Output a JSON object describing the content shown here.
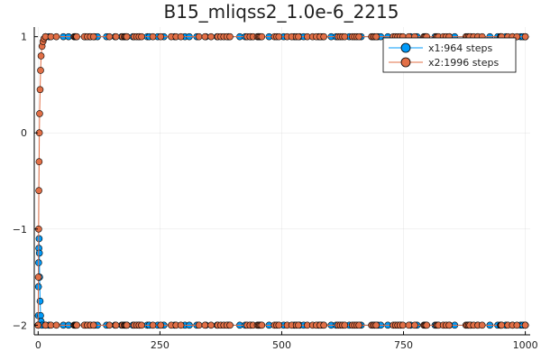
{
  "chart_data": {
    "type": "scatter",
    "title": "B15_mliqss2_1.0e-6_2215",
    "xlabel": "",
    "ylabel": "",
    "xlim": [
      -8,
      1010
    ],
    "ylim": [
      -2.1,
      1.1
    ],
    "x_ticks": [
      0,
      250,
      500,
      750,
      1000
    ],
    "x_tick_labels": [
      "0",
      "250",
      "500",
      "750",
      "1000"
    ],
    "y_ticks": [
      1,
      0,
      -1,
      -2
    ],
    "y_tick_labels": [
      "1",
      "0",
      "−1",
      "−2"
    ],
    "grid": true,
    "legend_position": "top-right",
    "series": [
      {
        "name": "x1:964 steps",
        "color": "#009af9",
        "marker": "circle",
        "description_values": {
          "transient_t": [
            0,
            0.3,
            0.6,
            1,
            1.5,
            2,
            2.5,
            3,
            4,
            5,
            6,
            8
          ],
          "transient_y": [
            -2,
            -1.9,
            -1.6,
            -1.35,
            -1.2,
            -1.1,
            -1.25,
            -1.5,
            -1.75,
            -1.9,
            -1.96,
            -2
          ],
          "upper_value": 1,
          "lower_value": -2
        }
      },
      {
        "name": "x2:1996 steps",
        "color": "#e26f46",
        "marker": "circle",
        "description_values": {
          "transient_t": [
            0,
            0.5,
            1,
            1.5,
            2,
            2.5,
            3,
            4,
            5,
            6,
            8,
            10,
            12,
            15
          ],
          "transient_y": [
            -2,
            -1.5,
            -1,
            -0.6,
            -0.3,
            0,
            0.2,
            0.45,
            0.65,
            0.8,
            0.9,
            0.95,
            0.98,
            1
          ],
          "upper_value": 1,
          "lower_value": -2
        }
      }
    ]
  }
}
